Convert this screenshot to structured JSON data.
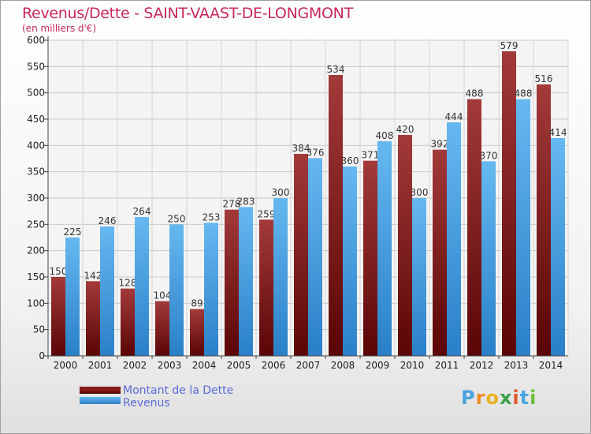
{
  "title": "Revenus/Dette - SAINT-VAAST-DE-LONGMONT",
  "subtitle": "(en milliers d'€)",
  "chart_data": {
    "type": "bar",
    "categories": [
      "2000",
      "2001",
      "2002",
      "2003",
      "2004",
      "2005",
      "2006",
      "2007",
      "2008",
      "2009",
      "2010",
      "2011",
      "2012",
      "2013",
      "2014"
    ],
    "series": [
      {
        "name": "Montant de la Dette",
        "color": "#8b1a1a",
        "values": [
          150,
          142,
          128,
          104,
          89,
          278,
          259,
          384,
          534,
          371,
          420,
          392,
          488,
          579,
          516
        ]
      },
      {
        "name": "Revenus",
        "color": "#3b9ee6",
        "values": [
          225,
          246,
          264,
          250,
          253,
          283,
          300,
          376,
          360,
          408,
          300,
          444,
          370,
          488,
          414
        ]
      }
    ],
    "yticks": [
      0,
      50,
      100,
      150,
      200,
      250,
      300,
      350,
      400,
      450,
      500,
      550,
      600
    ],
    "ylim": [
      0,
      600
    ],
    "grid": true,
    "legend_position": "bottom-left"
  },
  "legend": {
    "debt_label": "Montant de la Dette",
    "revenue_label": "Revenus"
  },
  "logo": {
    "letters": [
      "P",
      "r",
      "o",
      "x",
      "i",
      "t",
      "i"
    ],
    "colors": [
      "#4aa3df",
      "#f08a24",
      "#e8b21e",
      "#3aa04a",
      "#e05a2a",
      "#4aa3df",
      "#6cbf3a"
    ]
  }
}
